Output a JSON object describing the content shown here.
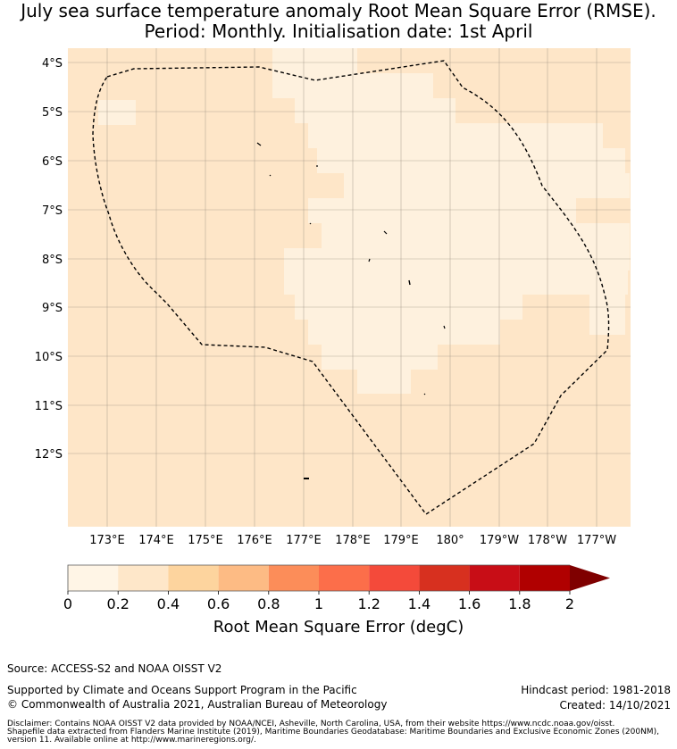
{
  "title": {
    "line1": "July sea surface temperature anomaly Root Mean Square Error (RMSE).",
    "line2": "Period: Monthly. Initialisation date: 1st April"
  },
  "colors": {
    "light_cell": "#fef1de",
    "background_cell": "#fee6c8",
    "zone_boundary": "#000000",
    "gridline": "#9a8f80"
  },
  "map": {
    "lon_range": [
      172.2,
      183.4
    ],
    "lat_range": [
      -13.5,
      -3.7
    ],
    "latitude_labels": [
      "4°S",
      "5°S",
      "6°S",
      "7°S",
      "8°S",
      "9°S",
      "10°S",
      "11°S",
      "12°S"
    ],
    "longitude_labels": [
      "173°E",
      "174°E",
      "175°E",
      "176°E",
      "177°E",
      "178°E",
      "179°E",
      "180°",
      "179°W",
      "178°W",
      "177°W"
    ],
    "boundary_label": "Maritime Boundaries and Exclusive Economic Zones (200NM)"
  },
  "colorbar": {
    "bins": [
      {
        "from": 0.0,
        "to": 0.2,
        "color": "#fff5e6"
      },
      {
        "from": 0.2,
        "to": 0.4,
        "color": "#fee7c9"
      },
      {
        "from": 0.4,
        "to": 0.6,
        "color": "#fdd49e"
      },
      {
        "from": 0.6,
        "to": 0.8,
        "color": "#fdbb84"
      },
      {
        "from": 0.8,
        "to": 1.0,
        "color": "#fc8d59"
      },
      {
        "from": 1.0,
        "to": 1.2,
        "color": "#fc6e4a"
      },
      {
        "from": 1.2,
        "to": 1.4,
        "color": "#f44a3a"
      },
      {
        "from": 1.4,
        "to": 1.6,
        "color": "#d7301f"
      },
      {
        "from": 1.6,
        "to": 1.8,
        "color": "#c80d16"
      },
      {
        "from": 1.8,
        "to": 2.0,
        "color": "#b00000"
      }
    ],
    "extend_color": "#7f0000",
    "ticks": [
      "0",
      "0.2",
      "0.4",
      "0.6",
      "0.8",
      "1",
      "1.2",
      "1.4",
      "1.6",
      "1.8",
      "2"
    ],
    "label": "Root Mean Square Error (degC)"
  },
  "footer": {
    "source": "Source: ACCESS-S2 and NOAA OISST V2",
    "supported": "Supported by Climate and Oceans Support Program in the Pacific",
    "copyright": "© Commonwealth of Australia 2021, Australian Bureau of Meteorology",
    "hindcast": "Hindcast period: 1981-2018",
    "created": "Created: 14/10/2021",
    "disclaimer1": "Disclaimer: Contains NOAA OISST V2 data provided by NOAA/NCEI, Asheville, North Carolina, USA, from their website https://www.ncdc.noaa.gov/oisst.",
    "disclaimer2": "Shapefile data extracted from Flanders Marine Institute (2019), Maritime Boundaries Geodatabase: Maritime Boundaries and Exclusive Economic Zones (200NM),",
    "disclaimer3": "version 11. Available online at http://www.marineregions.org/."
  }
}
